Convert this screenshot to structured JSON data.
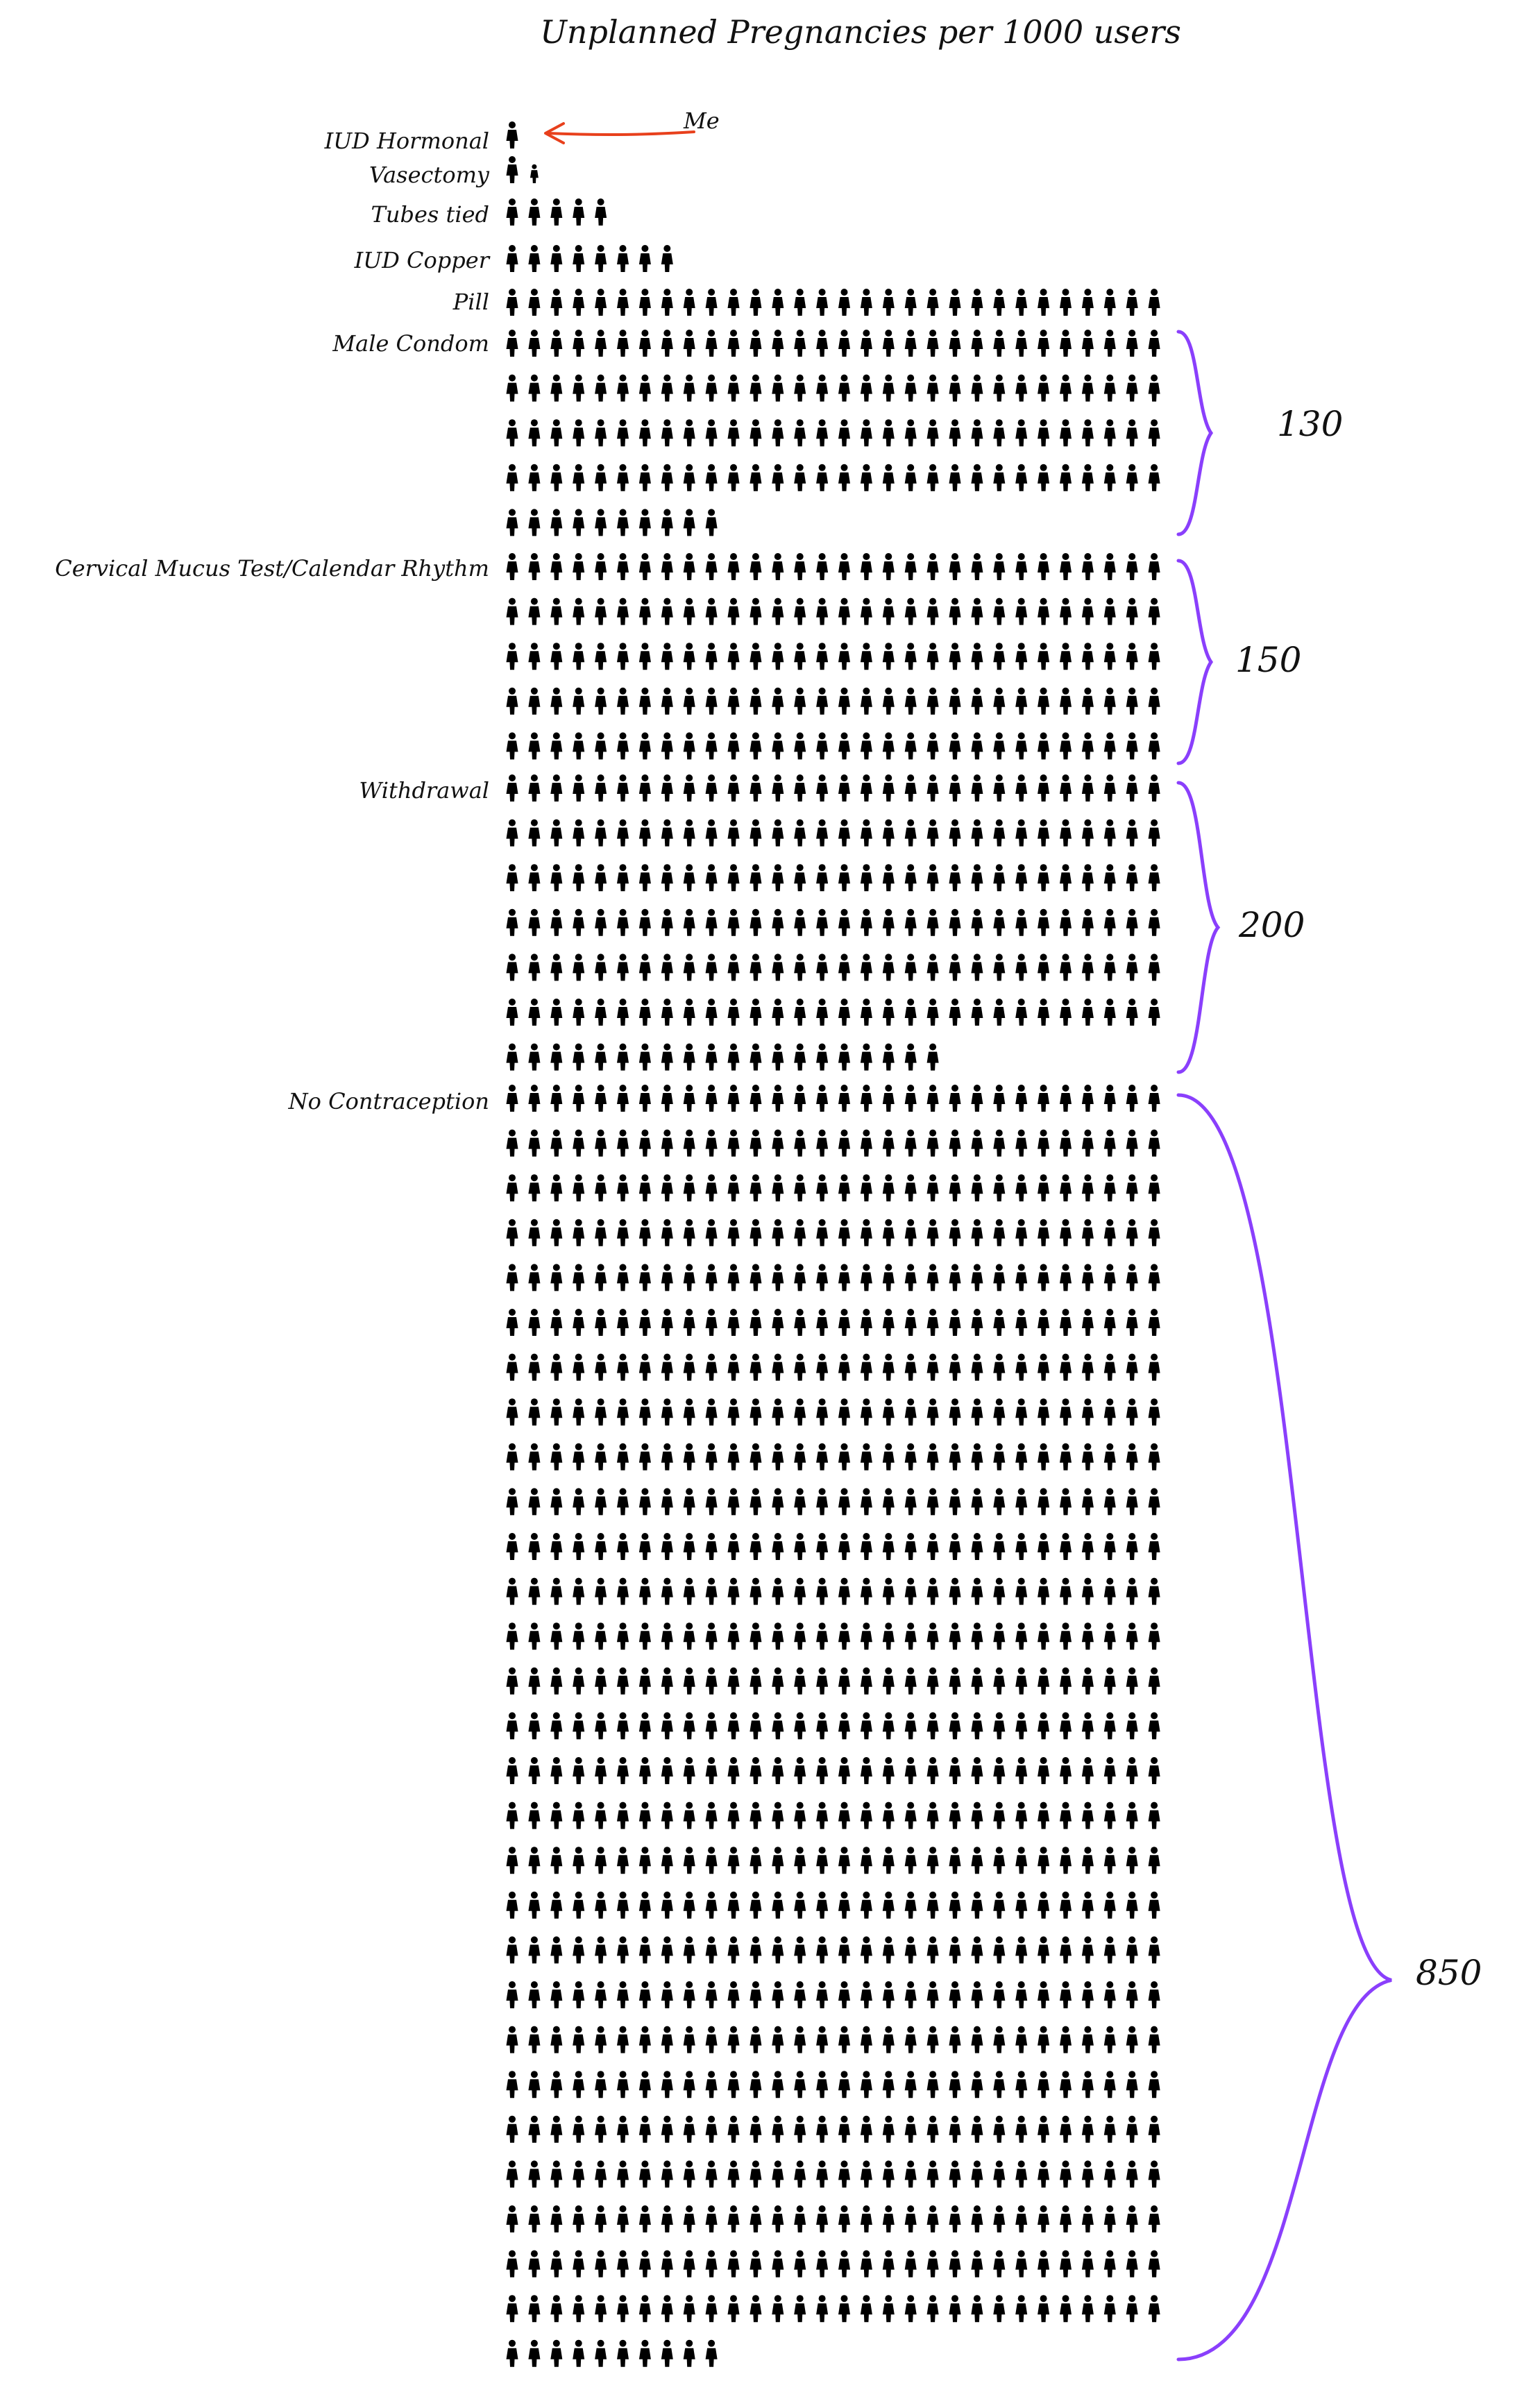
{
  "chart_data": {
    "type": "pictograph",
    "title": "Unplanned Pregnancies per 1000 users",
    "icons_per_row": 30,
    "categories": [
      "IUD Hormonal",
      "Vasectomy",
      "Tubes tied",
      "IUD Copper",
      "Pill",
      "Male Condom",
      "Cervical Mucus Test/Calendar Rhythm",
      "Withdrawal",
      "No Contraception"
    ],
    "values": [
      1,
      1.5,
      5,
      8,
      30,
      130,
      150,
      200,
      850
    ],
    "braced_totals": [
      "130",
      "150",
      "200",
      "850"
    ],
    "annotation": {
      "text": "Me",
      "target": "IUD Hormonal",
      "color": "#e8401c"
    },
    "brace_color": "#8a3ffc",
    "icon_color": "#000000"
  }
}
